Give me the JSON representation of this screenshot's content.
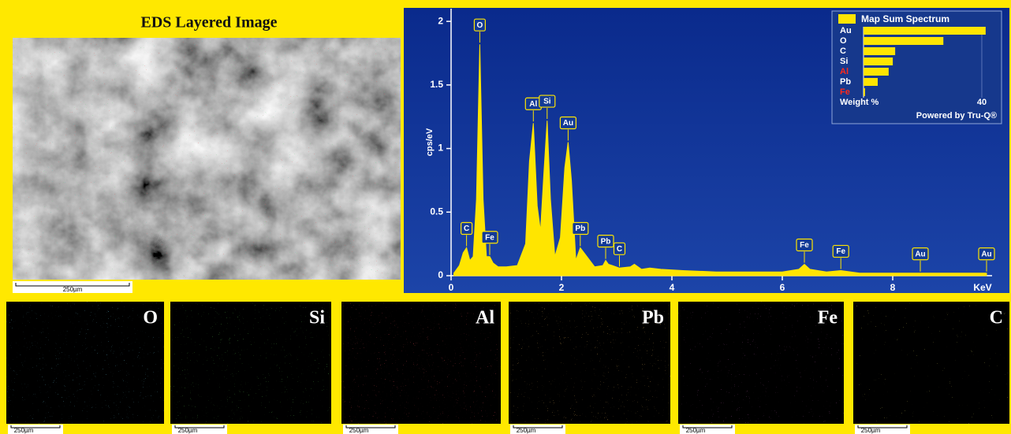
{
  "layered_image": {
    "title": "EDS Layered Image",
    "scale_bar": "250µm"
  },
  "chart_data": [
    {
      "type": "area",
      "y_label": "cps/eV",
      "x_label": "KeV",
      "color": "#ffe500",
      "x": [
        0.05,
        0.15,
        0.22,
        0.28,
        0.34,
        0.4,
        0.46,
        0.52,
        0.58,
        0.64,
        0.7,
        0.76,
        0.85,
        1.0,
        1.2,
        1.35,
        1.42,
        1.49,
        1.56,
        1.62,
        1.68,
        1.74,
        1.8,
        1.88,
        1.98,
        2.06,
        2.12,
        2.18,
        2.26,
        2.34,
        2.6,
        2.75,
        2.8,
        2.85,
        2.92,
        3.05,
        3.25,
        3.32,
        3.45,
        3.6,
        3.8,
        4.2,
        4.8,
        5.4,
        6.0,
        6.3,
        6.4,
        6.5,
        6.8,
        7.06,
        7.4,
        8.0,
        8.5,
        9.0,
        9.7
      ],
      "values": [
        0.02,
        0.08,
        0.18,
        0.22,
        0.12,
        0.15,
        0.6,
        1.82,
        0.6,
        0.15,
        0.15,
        0.1,
        0.07,
        0.07,
        0.08,
        0.25,
        0.9,
        1.2,
        0.55,
        0.35,
        0.8,
        1.22,
        0.6,
        0.15,
        0.3,
        0.85,
        1.05,
        0.75,
        0.12,
        0.22,
        0.07,
        0.08,
        0.12,
        0.09,
        0.08,
        0.06,
        0.07,
        0.09,
        0.05,
        0.06,
        0.05,
        0.04,
        0.03,
        0.03,
        0.03,
        0.05,
        0.09,
        0.05,
        0.03,
        0.04,
        0.02,
        0.02,
        0.02,
        0.02,
        0.02
      ],
      "annotations": [
        {
          "text": "C",
          "x": 0.28
        },
        {
          "text": "O",
          "x": 0.52
        },
        {
          "text": "Fe",
          "x": 0.7
        },
        {
          "text": "Al",
          "x": 1.49
        },
        {
          "text": "Si",
          "x": 1.74
        },
        {
          "text": "Au",
          "x": 2.12
        },
        {
          "text": "Pb",
          "x": 2.34
        },
        {
          "text": "Pb",
          "x": 2.8
        },
        {
          "text": "C",
          "x": 3.05
        },
        {
          "text": "Fe",
          "x": 6.4
        },
        {
          "text": "Fe",
          "x": 7.06
        },
        {
          "text": "Au",
          "x": 8.5
        },
        {
          "text": "Au",
          "x": 9.7
        }
      ],
      "xlim": [
        0,
        9.8
      ],
      "ylim": [
        0,
        2.1
      ],
      "xticks": [
        0,
        2,
        4,
        6,
        8
      ],
      "yticks": [
        0,
        0.5,
        1,
        1.5,
        2
      ]
    },
    {
      "type": "hbar",
      "title": "Map Sum Spectrum",
      "categories": [
        "Au",
        "O",
        "C",
        "Si",
        "Al",
        "Pb",
        "Fe"
      ],
      "values": [
        41.3,
        27,
        10.7,
        9.9,
        8.5,
        4.8,
        0.5
      ],
      "label_colors": [
        "#ffffff",
        "#ffffff",
        "#ffffff",
        "#ffffff",
        "#ff2a1a",
        "#ffffff",
        "#ff2a1a"
      ],
      "color": "#ffe500",
      "x_label": "Weight %",
      "footer": "Powered by Tru-Q®",
      "xlim": [
        0,
        41.5
      ],
      "xticks": [
        40
      ]
    }
  ],
  "element_maps": [
    {
      "label": "O",
      "scale_bar": "250µm"
    },
    {
      "label": "Si",
      "scale_bar": "250µm"
    },
    {
      "label": "Al",
      "scale_bar": "250µm"
    },
    {
      "label": "Pb",
      "scale_bar": "250µm"
    },
    {
      "label": "Fe",
      "scale_bar": "250µm"
    },
    {
      "label": "C",
      "scale_bar": "250µm"
    }
  ]
}
